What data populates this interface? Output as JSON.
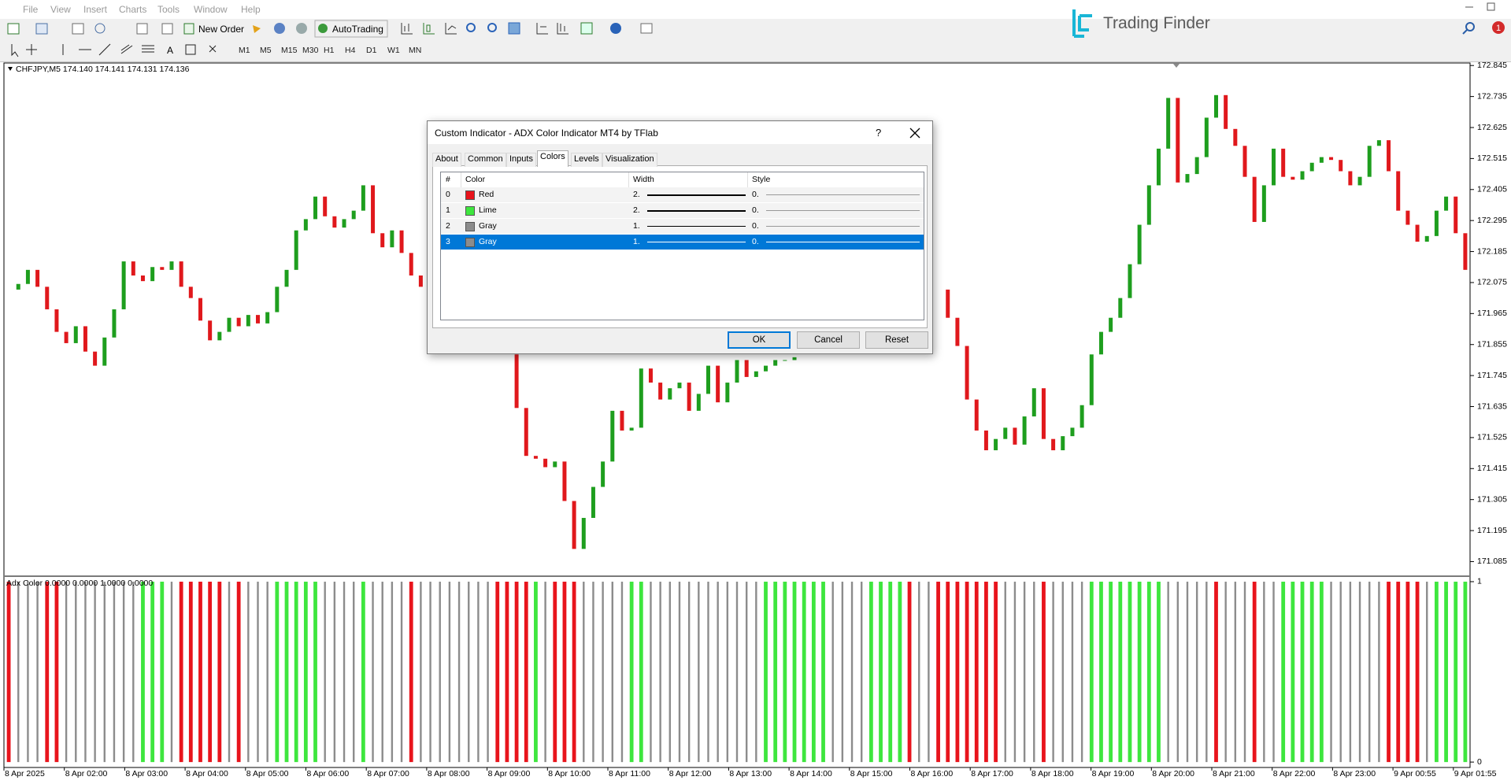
{
  "menu": [
    "File",
    "View",
    "Insert",
    "Charts",
    "Tools",
    "Window",
    "Help"
  ],
  "toolbar": {
    "new_order": "New Order",
    "autotrading": "AutoTrading",
    "timeframes": [
      "M1",
      "M5",
      "M15",
      "M30",
      "H1",
      "H4",
      "D1",
      "W1",
      "MN"
    ]
  },
  "logo": {
    "text": "Trading Finder"
  },
  "notification": "1",
  "chart_data": {
    "type": "candlestick",
    "symbol_header": "CHFJPY,M5  174.140 174.141 174.131 174.136",
    "close": [
      172.05,
      172.07,
      172.12,
      172.06,
      171.98,
      171.9,
      171.86,
      171.92,
      171.83,
      171.78,
      171.88,
      171.98,
      172.15,
      172.1,
      172.08,
      172.13,
      172.12,
      172.15,
      172.06,
      172.02,
      171.94,
      171.87,
      171.9,
      171.95,
      171.92,
      171.96,
      171.93,
      171.97,
      172.06,
      172.12,
      172.26,
      172.3,
      172.38,
      172.31,
      172.27,
      172.3,
      172.33,
      172.42,
      172.25,
      172.2,
      172.26,
      172.18,
      172.1,
      172.06,
      null,
      null,
      null,
      null,
      null,
      null,
      null,
      null,
      171.82,
      171.63,
      171.46,
      171.45,
      171.42,
      171.44,
      171.3,
      171.13,
      171.24,
      171.35,
      171.44,
      171.62,
      171.55,
      171.56,
      171.77,
      171.72,
      171.66,
      171.7,
      171.72,
      171.62,
      171.68,
      171.78,
      171.65,
      171.72,
      171.8,
      171.74,
      171.76,
      171.78,
      171.8,
      171.8,
      171.81,
      null,
      null,
      null,
      null,
      null,
      null,
      null,
      null,
      null,
      null,
      null,
      null,
      null,
      null,
      172.05,
      171.95,
      171.85,
      171.66,
      171.55,
      171.48,
      171.52,
      171.56,
      171.5,
      171.6,
      171.7,
      171.52,
      171.48,
      171.53,
      171.56,
      171.64,
      171.82,
      171.9,
      171.95,
      172.02,
      172.14,
      172.28,
      172.42,
      172.55,
      172.73,
      172.43,
      172.46,
      172.52,
      172.66,
      172.74,
      172.62,
      172.56,
      172.45,
      172.29,
      172.42,
      172.55,
      172.45,
      172.44,
      172.47,
      172.5,
      172.52,
      172.51,
      172.47,
      172.42,
      172.45,
      172.56,
      172.58,
      172.47,
      172.33,
      172.28,
      172.22,
      172.24,
      172.33,
      172.38,
      172.25,
      172.12
    ],
    "up_color": "#1e9e1e",
    "down_color": "#e0181c",
    "ylim": [
      171.036,
      172.854
    ],
    "yticks": [
      172.845,
      172.735,
      172.625,
      172.515,
      172.405,
      172.295,
      172.185,
      172.075,
      171.965,
      171.855,
      171.745,
      171.635,
      171.525,
      171.415,
      171.305,
      171.195,
      171.085
    ],
    "grid": false,
    "time_labels": [
      "8 Apr 2025",
      "8 Apr 02:00",
      "8 Apr 03:00",
      "8 Apr 04:00",
      "8 Apr 05:00",
      "8 Apr 06:00",
      "8 Apr 07:00",
      "8 Apr 08:00",
      "8 Apr 09:00",
      "8 Apr 10:00",
      "8 Apr 11:00",
      "8 Apr 12:00",
      "8 Apr 13:00",
      "8 Apr 14:00",
      "8 Apr 15:00",
      "8 Apr 16:00",
      "8 Apr 17:00",
      "8 Apr 18:00",
      "8 Apr 19:00",
      "8 Apr 20:00",
      "8 Apr 21:00",
      "8 Apr 22:00",
      "8 Apr 23:00",
      "9 Apr 00:55",
      "9 Apr 01:55"
    ],
    "indicator": {
      "type": "histogram",
      "label": "Adx Color 0.0000 0.0000 1.0000 0.0000",
      "values": [
        1,
        1,
        1,
        1,
        1,
        1,
        1,
        1,
        1,
        1,
        1,
        1,
        1,
        1,
        1,
        1,
        1,
        1,
        1,
        1,
        1,
        1,
        1,
        1,
        1,
        1,
        1,
        1,
        1,
        1,
        1,
        1,
        1,
        1,
        1,
        1,
        1,
        1,
        1,
        1,
        1,
        1,
        1,
        1,
        1,
        1,
        1,
        1,
        1,
        1,
        1,
        1,
        1,
        1,
        1,
        1,
        1,
        1,
        1,
        1,
        1,
        1,
        1,
        1,
        1,
        1,
        1,
        1,
        1,
        1,
        1,
        1,
        1,
        1,
        1,
        1,
        1,
        1,
        1,
        1,
        1,
        1,
        1,
        1,
        1,
        1,
        1,
        1,
        1,
        1,
        1,
        1,
        1,
        1,
        1,
        1,
        1,
        1,
        1,
        1,
        1,
        1,
        1,
        1,
        1,
        1,
        1,
        1,
        1,
        1,
        1,
        1,
        1,
        1,
        1,
        1,
        1,
        1,
        1,
        1,
        1,
        1,
        1,
        1,
        1,
        1,
        1,
        1,
        1,
        1,
        1,
        1,
        1,
        1,
        1,
        1,
        1,
        1,
        1,
        1,
        1,
        1,
        1,
        1,
        1,
        1,
        1,
        1,
        1,
        1,
        1,
        1,
        1
      ],
      "buffers": [
        0,
        2,
        2,
        2,
        0,
        0,
        2,
        2,
        2,
        2,
        2,
        2,
        2,
        2,
        1,
        1,
        1,
        2,
        0,
        0,
        0,
        0,
        0,
        2,
        0,
        2,
        2,
        2,
        1,
        1,
        1,
        1,
        1,
        2,
        2,
        2,
        2,
        1,
        2,
        2,
        2,
        2,
        0,
        2,
        2,
        2,
        2,
        2,
        2,
        2,
        2,
        0,
        0,
        0,
        0,
        1,
        2,
        0,
        0,
        0,
        2,
        2,
        2,
        2,
        2,
        1,
        1,
        2,
        2,
        2,
        2,
        2,
        2,
        2,
        2,
        2,
        2,
        2,
        2,
        1,
        1,
        1,
        1,
        1,
        1,
        1,
        2,
        2,
        2,
        2,
        1,
        1,
        1,
        1,
        0,
        2,
        2,
        0,
        0,
        0,
        0,
        0,
        0,
        0,
        2,
        2,
        2,
        2,
        0,
        2,
        2,
        2,
        2,
        1,
        1,
        1,
        1,
        1,
        1,
        1,
        1,
        2,
        2,
        2,
        2,
        2,
        0,
        2,
        2,
        2,
        0,
        2,
        2,
        1,
        1,
        1,
        1,
        1,
        2,
        2,
        2,
        2,
        2,
        2,
        0,
        0,
        0,
        0,
        2,
        1,
        1,
        1,
        1
      ],
      "ylim": [
        -0.03,
        1.026
      ],
      "yticks": [
        0,
        1
      ]
    }
  },
  "dialog": {
    "title": "Custom Indicator - ADX Color Indicator MT4 by TFlab",
    "help": "?",
    "tabs": [
      "About",
      "Common",
      "Inputs",
      "Colors",
      "Levels",
      "Visualization"
    ],
    "active_tab": 3,
    "columns": [
      "#",
      "Color",
      "Width",
      "Style"
    ],
    "rows": [
      {
        "index": 0,
        "color": "Red",
        "swatch": "#e8141c",
        "width": "2.",
        "style": "0."
      },
      {
        "index": 1,
        "color": "Lime",
        "swatch": "#3ee63e",
        "width": "2.",
        "style": "0."
      },
      {
        "index": 2,
        "color": "Gray",
        "swatch": "#8c8c8c",
        "width": "1.",
        "style": "0."
      },
      {
        "index": 3,
        "color": "Gray",
        "swatch": "#8c8c8c",
        "width": "1.",
        "style": "0."
      }
    ],
    "selected_row": 3,
    "buttons": [
      "OK",
      "Cancel",
      "Reset"
    ]
  }
}
